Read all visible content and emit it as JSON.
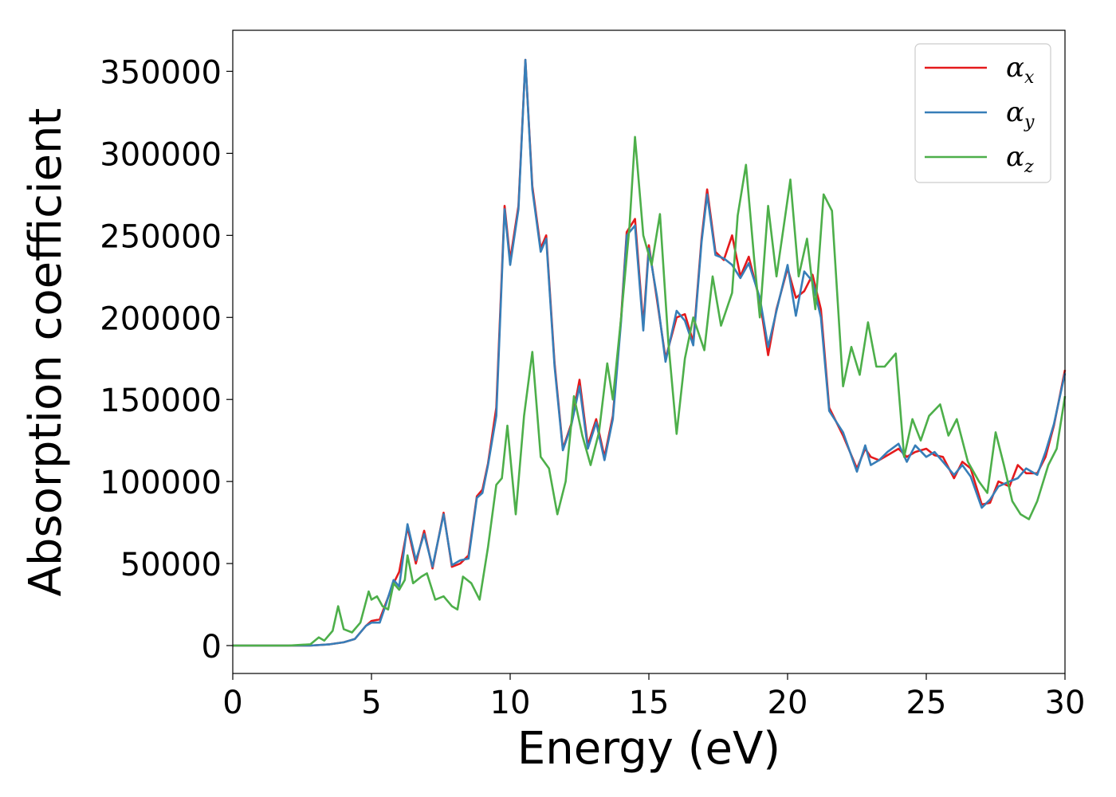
{
  "chart_data": {
    "type": "line",
    "title": "",
    "xlabel": "Energy (eV)",
    "ylabel": "Absorption coefficient",
    "xlim": [
      0,
      30
    ],
    "ylim": [
      -17000,
      375000
    ],
    "xticks": [
      0,
      5,
      10,
      15,
      20,
      25,
      30
    ],
    "yticks": [
      0,
      50000,
      100000,
      150000,
      200000,
      250000,
      300000,
      350000
    ],
    "grid": false,
    "legend_position": "top-right",
    "series": [
      {
        "name": "αx",
        "legend_base": "α",
        "legend_sub": "x",
        "color": "#e41a1c",
        "x": [
          0,
          1,
          2,
          2.8,
          3.5,
          4.0,
          4.4,
          4.8,
          5.0,
          5.3,
          5.5,
          5.8,
          6.0,
          6.3,
          6.6,
          6.9,
          7.2,
          7.6,
          7.9,
          8.2,
          8.5,
          8.8,
          9.0,
          9.2,
          9.5,
          9.8,
          10.0,
          10.3,
          10.55,
          10.8,
          11.1,
          11.3,
          11.6,
          11.9,
          12.2,
          12.5,
          12.8,
          13.1,
          13.4,
          13.7,
          14.0,
          14.2,
          14.5,
          14.8,
          15.0,
          15.3,
          15.6,
          16.0,
          16.3,
          16.6,
          16.9,
          17.1,
          17.4,
          17.7,
          18.0,
          18.3,
          18.6,
          19.0,
          19.3,
          19.6,
          20.0,
          20.3,
          20.6,
          20.9,
          21.2,
          21.5,
          22.0,
          22.5,
          22.8,
          23.0,
          23.3,
          23.6,
          24.0,
          24.3,
          24.6,
          25.0,
          25.3,
          25.6,
          26.0,
          26.3,
          26.6,
          27.0,
          27.3,
          27.6,
          28.0,
          28.3,
          28.6,
          29.0,
          29.3,
          29.6,
          30.0
        ],
        "y": [
          0,
          0,
          0,
          0,
          800,
          2000,
          4000,
          12000,
          15000,
          16000,
          25000,
          38000,
          45000,
          72000,
          50000,
          70000,
          47000,
          81000,
          48000,
          50000,
          55000,
          91000,
          95000,
          111000,
          145000,
          268000,
          235000,
          268000,
          357000,
          280000,
          242000,
          250000,
          172000,
          120000,
          135000,
          162000,
          122000,
          138000,
          115000,
          140000,
          200000,
          252000,
          260000,
          195000,
          244000,
          210000,
          175000,
          200000,
          202000,
          185000,
          248000,
          278000,
          240000,
          235000,
          250000,
          225000,
          237000,
          210000,
          177000,
          205000,
          230000,
          212000,
          216000,
          226000,
          205000,
          145000,
          128000,
          108000,
          120000,
          115000,
          113000,
          116000,
          120000,
          115000,
          118000,
          120000,
          116000,
          115000,
          102000,
          112000,
          108000,
          86000,
          87000,
          100000,
          97000,
          110000,
          105000,
          105000,
          115000,
          134000,
          168000
        ]
      },
      {
        "name": "αy",
        "legend_base": "α",
        "legend_sub": "y",
        "color": "#377eb8",
        "x": [
          0,
          1,
          2,
          2.8,
          3.5,
          4.0,
          4.4,
          4.8,
          5.0,
          5.3,
          5.5,
          5.8,
          6.0,
          6.3,
          6.6,
          6.9,
          7.2,
          7.6,
          7.9,
          8.2,
          8.5,
          8.8,
          9.0,
          9.2,
          9.5,
          9.8,
          10.0,
          10.3,
          10.55,
          10.8,
          11.1,
          11.3,
          11.6,
          11.9,
          12.2,
          12.5,
          12.8,
          13.1,
          13.4,
          13.7,
          14.0,
          14.2,
          14.5,
          14.8,
          15.0,
          15.3,
          15.6,
          16.0,
          16.3,
          16.6,
          16.9,
          17.1,
          17.4,
          17.7,
          18.0,
          18.3,
          18.6,
          19.0,
          19.3,
          19.6,
          20.0,
          20.3,
          20.6,
          20.9,
          21.2,
          21.5,
          22.0,
          22.5,
          22.8,
          23.0,
          23.3,
          23.6,
          24.0,
          24.3,
          24.6,
          25.0,
          25.3,
          25.6,
          26.0,
          26.3,
          26.6,
          27.0,
          27.3,
          27.6,
          28.0,
          28.3,
          28.6,
          29.0,
          29.3,
          29.6,
          30.0
        ],
        "y": [
          0,
          0,
          0,
          0,
          800,
          2000,
          4000,
          12000,
          14000,
          14000,
          24000,
          40000,
          36000,
          74000,
          52000,
          68000,
          48000,
          80000,
          49000,
          52000,
          53000,
          90000,
          93000,
          110000,
          140000,
          266000,
          232000,
          266000,
          357000,
          278000,
          240000,
          248000,
          170000,
          119000,
          134000,
          158000,
          120000,
          136000,
          113000,
          138000,
          198000,
          250000,
          256000,
          192000,
          242000,
          212000,
          173000,
          204000,
          198000,
          183000,
          246000,
          275000,
          238000,
          236000,
          232000,
          224000,
          233000,
          212000,
          182000,
          204000,
          232000,
          201000,
          228000,
          222000,
          200000,
          143000,
          130000,
          106000,
          122000,
          110000,
          113000,
          118000,
          123000,
          112000,
          122000,
          115000,
          118000,
          112000,
          104000,
          110000,
          103000,
          84000,
          89000,
          97000,
          100000,
          102000,
          108000,
          104000,
          118000,
          135000,
          166000
        ]
      },
      {
        "name": "αz",
        "legend_base": "α",
        "legend_sub": "z",
        "color": "#4daf4a",
        "x": [
          0,
          1,
          2,
          2.8,
          3.1,
          3.3,
          3.6,
          3.8,
          4.0,
          4.3,
          4.6,
          4.9,
          5.0,
          5.2,
          5.4,
          5.6,
          5.8,
          6.0,
          6.2,
          6.3,
          6.5,
          6.8,
          7.0,
          7.3,
          7.6,
          7.9,
          8.1,
          8.3,
          8.6,
          8.9,
          9.2,
          9.5,
          9.7,
          9.9,
          10.2,
          10.5,
          10.8,
          11.1,
          11.4,
          11.7,
          12.0,
          12.3,
          12.6,
          12.9,
          13.2,
          13.5,
          13.7,
          14.0,
          14.3,
          14.5,
          14.8,
          15.1,
          15.4,
          15.7,
          16.0,
          16.3,
          16.6,
          17.0,
          17.3,
          17.6,
          18.0,
          18.2,
          18.5,
          18.8,
          19.0,
          19.3,
          19.6,
          19.9,
          20.1,
          20.4,
          20.7,
          21.0,
          21.3,
          21.6,
          22.0,
          22.3,
          22.6,
          22.9,
          23.2,
          23.5,
          23.9,
          24.2,
          24.5,
          24.8,
          25.1,
          25.5,
          25.8,
          26.1,
          26.5,
          26.9,
          27.2,
          27.5,
          27.8,
          28.1,
          28.4,
          28.7,
          29.0,
          29.4,
          29.7,
          30.0
        ],
        "y": [
          0,
          0,
          0,
          800,
          5000,
          3000,
          9000,
          24000,
          10000,
          8000,
          14000,
          33000,
          28000,
          30000,
          24000,
          22000,
          38000,
          34000,
          40000,
          55000,
          38000,
          42000,
          44000,
          28000,
          30000,
          24000,
          22000,
          42000,
          38000,
          28000,
          60000,
          98000,
          102000,
          134000,
          80000,
          140000,
          179000,
          115000,
          108000,
          80000,
          100000,
          152000,
          128000,
          110000,
          130000,
          172000,
          150000,
          200000,
          255000,
          310000,
          250000,
          232000,
          263000,
          185000,
          129000,
          175000,
          200000,
          180000,
          225000,
          195000,
          215000,
          262000,
          293000,
          235000,
          200000,
          268000,
          225000,
          260000,
          284000,
          225000,
          248000,
          205000,
          275000,
          265000,
          158000,
          182000,
          165000,
          197000,
          170000,
          170000,
          178000,
          115000,
          138000,
          125000,
          140000,
          147000,
          128000,
          138000,
          112000,
          100000,
          93000,
          130000,
          110000,
          88000,
          80000,
          77000,
          88000,
          110000,
          120000,
          152000
        ]
      }
    ]
  }
}
